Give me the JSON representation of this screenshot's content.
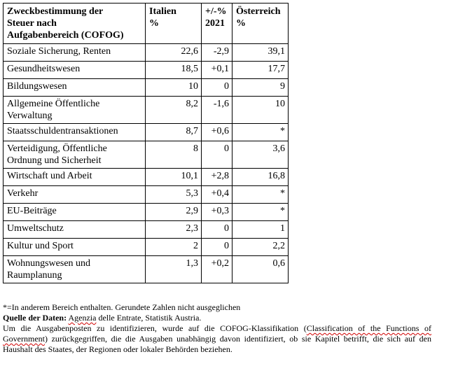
{
  "table": {
    "headers": {
      "category": [
        "Zweckbestimmung der",
        "Steuer nach",
        "Aufgabenbereich (COFOG)"
      ],
      "italy": [
        "Italien",
        "%"
      ],
      "change": [
        "+/-%",
        "2021"
      ],
      "austria": [
        "Österreich",
        "%"
      ]
    },
    "rows": [
      {
        "category": [
          "Soziale Sicherung, Renten"
        ],
        "italy": "22,6",
        "change": "-2,9",
        "austria": "39,1"
      },
      {
        "category": [
          "Gesundheitswesen"
        ],
        "italy": "18,5",
        "change": "+0,1",
        "austria": "17,7"
      },
      {
        "category": [
          "Bildungswesen"
        ],
        "italy": "10",
        "change": "0",
        "austria": "9"
      },
      {
        "category": [
          "Allgemeine Öffentliche",
          "Verwaltung"
        ],
        "italy": "8,2",
        "change": "-1,6",
        "austria": "10"
      },
      {
        "category": [
          "Staatsschuldentransaktionen"
        ],
        "italy": "8,7",
        "change": "+0,6",
        "austria": "*"
      },
      {
        "category": [
          "Verteidigung, Öffentliche",
          "Ordnung und Sicherheit"
        ],
        "italy": "8",
        "change": "0",
        "austria": "3,6"
      },
      {
        "category": [
          "Wirtschaft und Arbeit"
        ],
        "italy": "10,1",
        "change": "+2,8",
        "austria": "16,8"
      },
      {
        "category": [
          "Verkehr"
        ],
        "italy": "5,3",
        "change": "+0,4",
        "austria": "*"
      },
      {
        "category": [
          "EU-Beiträge"
        ],
        "italy": "2,9",
        "change": "+0,3",
        "austria": "*"
      },
      {
        "category": [
          "Umweltschutz"
        ],
        "italy": "2,3",
        "change": "0",
        "austria": "1"
      },
      {
        "category": [
          "Kultur und Sport"
        ],
        "italy": "2",
        "change": "0",
        "austria": "2,2"
      },
      {
        "category": [
          "Wohnungswesen und",
          "Raumplanung"
        ],
        "italy": "1,3",
        "change": "+0,2",
        "austria": "0,6"
      }
    ]
  },
  "notes": {
    "footnote": "*=In anderem Bereich enthalten. Gerundete Zahlen nicht ausgeglichen",
    "source_label": "Quelle der Daten:",
    "source_agency": "Agenzia",
    "source_rest": " delle  Entrate, Statistik Austria.",
    "method_1": "Um die Ausgabenposten zu identifizieren, wurde auf die COFOG-Klassifikation (",
    "method_link": "Classification of the Functions of Government",
    "method_2": ") zurückgegriffen, die die Ausgaben unabhängig davon identifiziert, ob sie Kapitel betrifft, die sich auf den Haushalt des Staates, der Regionen oder lokaler Behörden beziehen."
  }
}
